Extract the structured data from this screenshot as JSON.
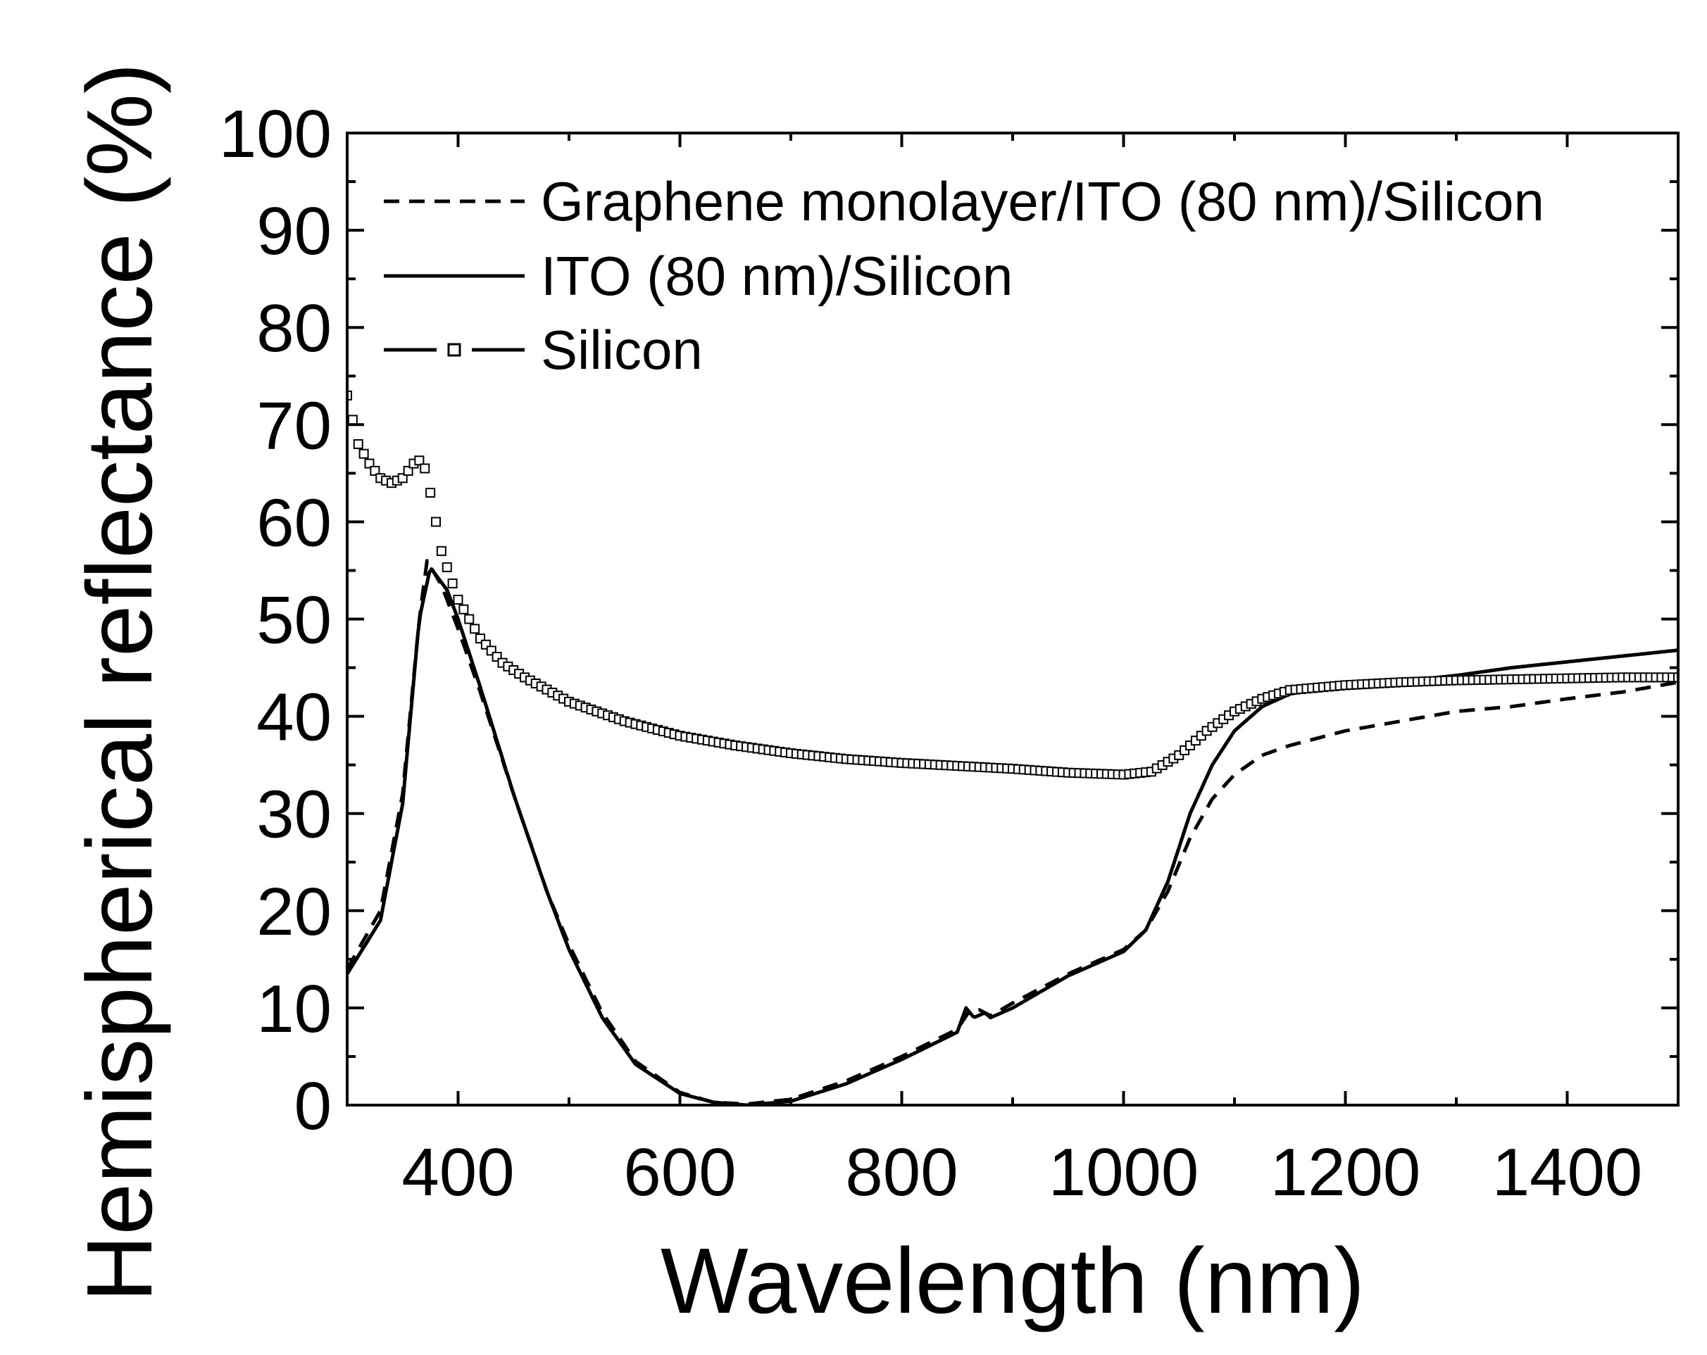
{
  "chart_data": {
    "type": "line",
    "title": "",
    "xlabel": "Wavelength (nm)",
    "ylabel": "Hemispherical reflectance (%)",
    "xlim": [
      300,
      1500
    ],
    "ylim": [
      0,
      100
    ],
    "x_ticks": [
      400,
      600,
      800,
      1000,
      1200,
      1400
    ],
    "x_tick_labels": [
      "400",
      "600",
      "800",
      "1000",
      "1200",
      "1400"
    ],
    "y_ticks": [
      0,
      10,
      20,
      30,
      40,
      50,
      60,
      70,
      80,
      90,
      100
    ],
    "y_tick_labels": [
      "0",
      "10",
      "20",
      "30",
      "40",
      "50",
      "60",
      "70",
      "80",
      "90",
      "100"
    ],
    "grid": false,
    "legend_position": "top-left",
    "series": [
      {
        "name": "Graphene monolayer/ITO (80 nm)/Silicon",
        "style": "short-dash",
        "color": "#000000",
        "points": [
          [
            300,
            14
          ],
          [
            330,
            20
          ],
          [
            350,
            32
          ],
          [
            365,
            50
          ],
          [
            372,
            56
          ],
          [
            385,
            53.5
          ],
          [
            400,
            49
          ],
          [
            420,
            42.5
          ],
          [
            450,
            32
          ],
          [
            480,
            22
          ],
          [
            500,
            16.5
          ],
          [
            530,
            9.5
          ],
          [
            560,
            4.5
          ],
          [
            600,
            1.3
          ],
          [
            630,
            0.3
          ],
          [
            660,
            0.1
          ],
          [
            700,
            0.6
          ],
          [
            750,
            2.5
          ],
          [
            800,
            5
          ],
          [
            850,
            7.8
          ],
          [
            860,
            9.5
          ],
          [
            870,
            9.8
          ],
          [
            880,
            9.2
          ],
          [
            900,
            10.5
          ],
          [
            950,
            13.5
          ],
          [
            1000,
            16
          ],
          [
            1020,
            18
          ],
          [
            1040,
            22
          ],
          [
            1060,
            27.5
          ],
          [
            1080,
            31.5
          ],
          [
            1100,
            34
          ],
          [
            1125,
            36
          ],
          [
            1150,
            37
          ],
          [
            1200,
            38.5
          ],
          [
            1250,
            39.5
          ],
          [
            1300,
            40.5
          ],
          [
            1350,
            41
          ],
          [
            1400,
            41.8
          ],
          [
            1450,
            42.5
          ],
          [
            1500,
            43.5
          ]
        ]
      },
      {
        "name": "ITO (80 nm)/Silicon",
        "style": "solid",
        "color": "#000000",
        "points": [
          [
            300,
            13.5
          ],
          [
            330,
            19
          ],
          [
            350,
            31
          ],
          [
            365,
            50
          ],
          [
            375,
            55.3
          ],
          [
            390,
            53
          ],
          [
            400,
            50
          ],
          [
            420,
            43
          ],
          [
            450,
            32
          ],
          [
            480,
            22
          ],
          [
            500,
            16
          ],
          [
            530,
            9
          ],
          [
            560,
            4.2
          ],
          [
            600,
            1.2
          ],
          [
            630,
            0.3
          ],
          [
            660,
            0
          ],
          [
            700,
            0.4
          ],
          [
            750,
            2.2
          ],
          [
            800,
            4.7
          ],
          [
            850,
            7.5
          ],
          [
            858,
            10
          ],
          [
            865,
            9
          ],
          [
            875,
            9.5
          ],
          [
            880,
            9
          ],
          [
            900,
            10
          ],
          [
            950,
            13.3
          ],
          [
            1000,
            15.8
          ],
          [
            1020,
            18
          ],
          [
            1040,
            23
          ],
          [
            1060,
            30
          ],
          [
            1080,
            35
          ],
          [
            1100,
            38.5
          ],
          [
            1125,
            41
          ],
          [
            1150,
            42.3
          ],
          [
            1200,
            43.2
          ],
          [
            1250,
            43.6
          ],
          [
            1300,
            44.2
          ],
          [
            1350,
            45
          ],
          [
            1400,
            45.6
          ],
          [
            1450,
            46.2
          ],
          [
            1500,
            46.8
          ]
        ]
      },
      {
        "name": "Silicon",
        "style": "long-dash-square-markers",
        "color": "#000000",
        "points": [
          [
            300,
            73
          ],
          [
            310,
            68
          ],
          [
            320,
            66
          ],
          [
            330,
            64.5
          ],
          [
            340,
            64
          ],
          [
            350,
            64.5
          ],
          [
            360,
            66
          ],
          [
            368,
            66.5
          ],
          [
            375,
            63
          ],
          [
            385,
            57
          ],
          [
            400,
            52
          ],
          [
            420,
            48
          ],
          [
            440,
            45.5
          ],
          [
            460,
            44
          ],
          [
            500,
            41.5
          ],
          [
            550,
            39.5
          ],
          [
            600,
            38
          ],
          [
            650,
            37
          ],
          [
            700,
            36.2
          ],
          [
            750,
            35.6
          ],
          [
            800,
            35.2
          ],
          [
            850,
            34.9
          ],
          [
            900,
            34.6
          ],
          [
            950,
            34.2
          ],
          [
            1000,
            34
          ],
          [
            1025,
            34.3
          ],
          [
            1050,
            36
          ],
          [
            1075,
            38.5
          ],
          [
            1100,
            40.5
          ],
          [
            1125,
            41.8
          ],
          [
            1150,
            42.7
          ],
          [
            1200,
            43.2
          ],
          [
            1250,
            43.5
          ],
          [
            1300,
            43.7
          ],
          [
            1350,
            43.8
          ],
          [
            1400,
            43.9
          ],
          [
            1450,
            44
          ],
          [
            1500,
            44
          ]
        ]
      }
    ]
  }
}
